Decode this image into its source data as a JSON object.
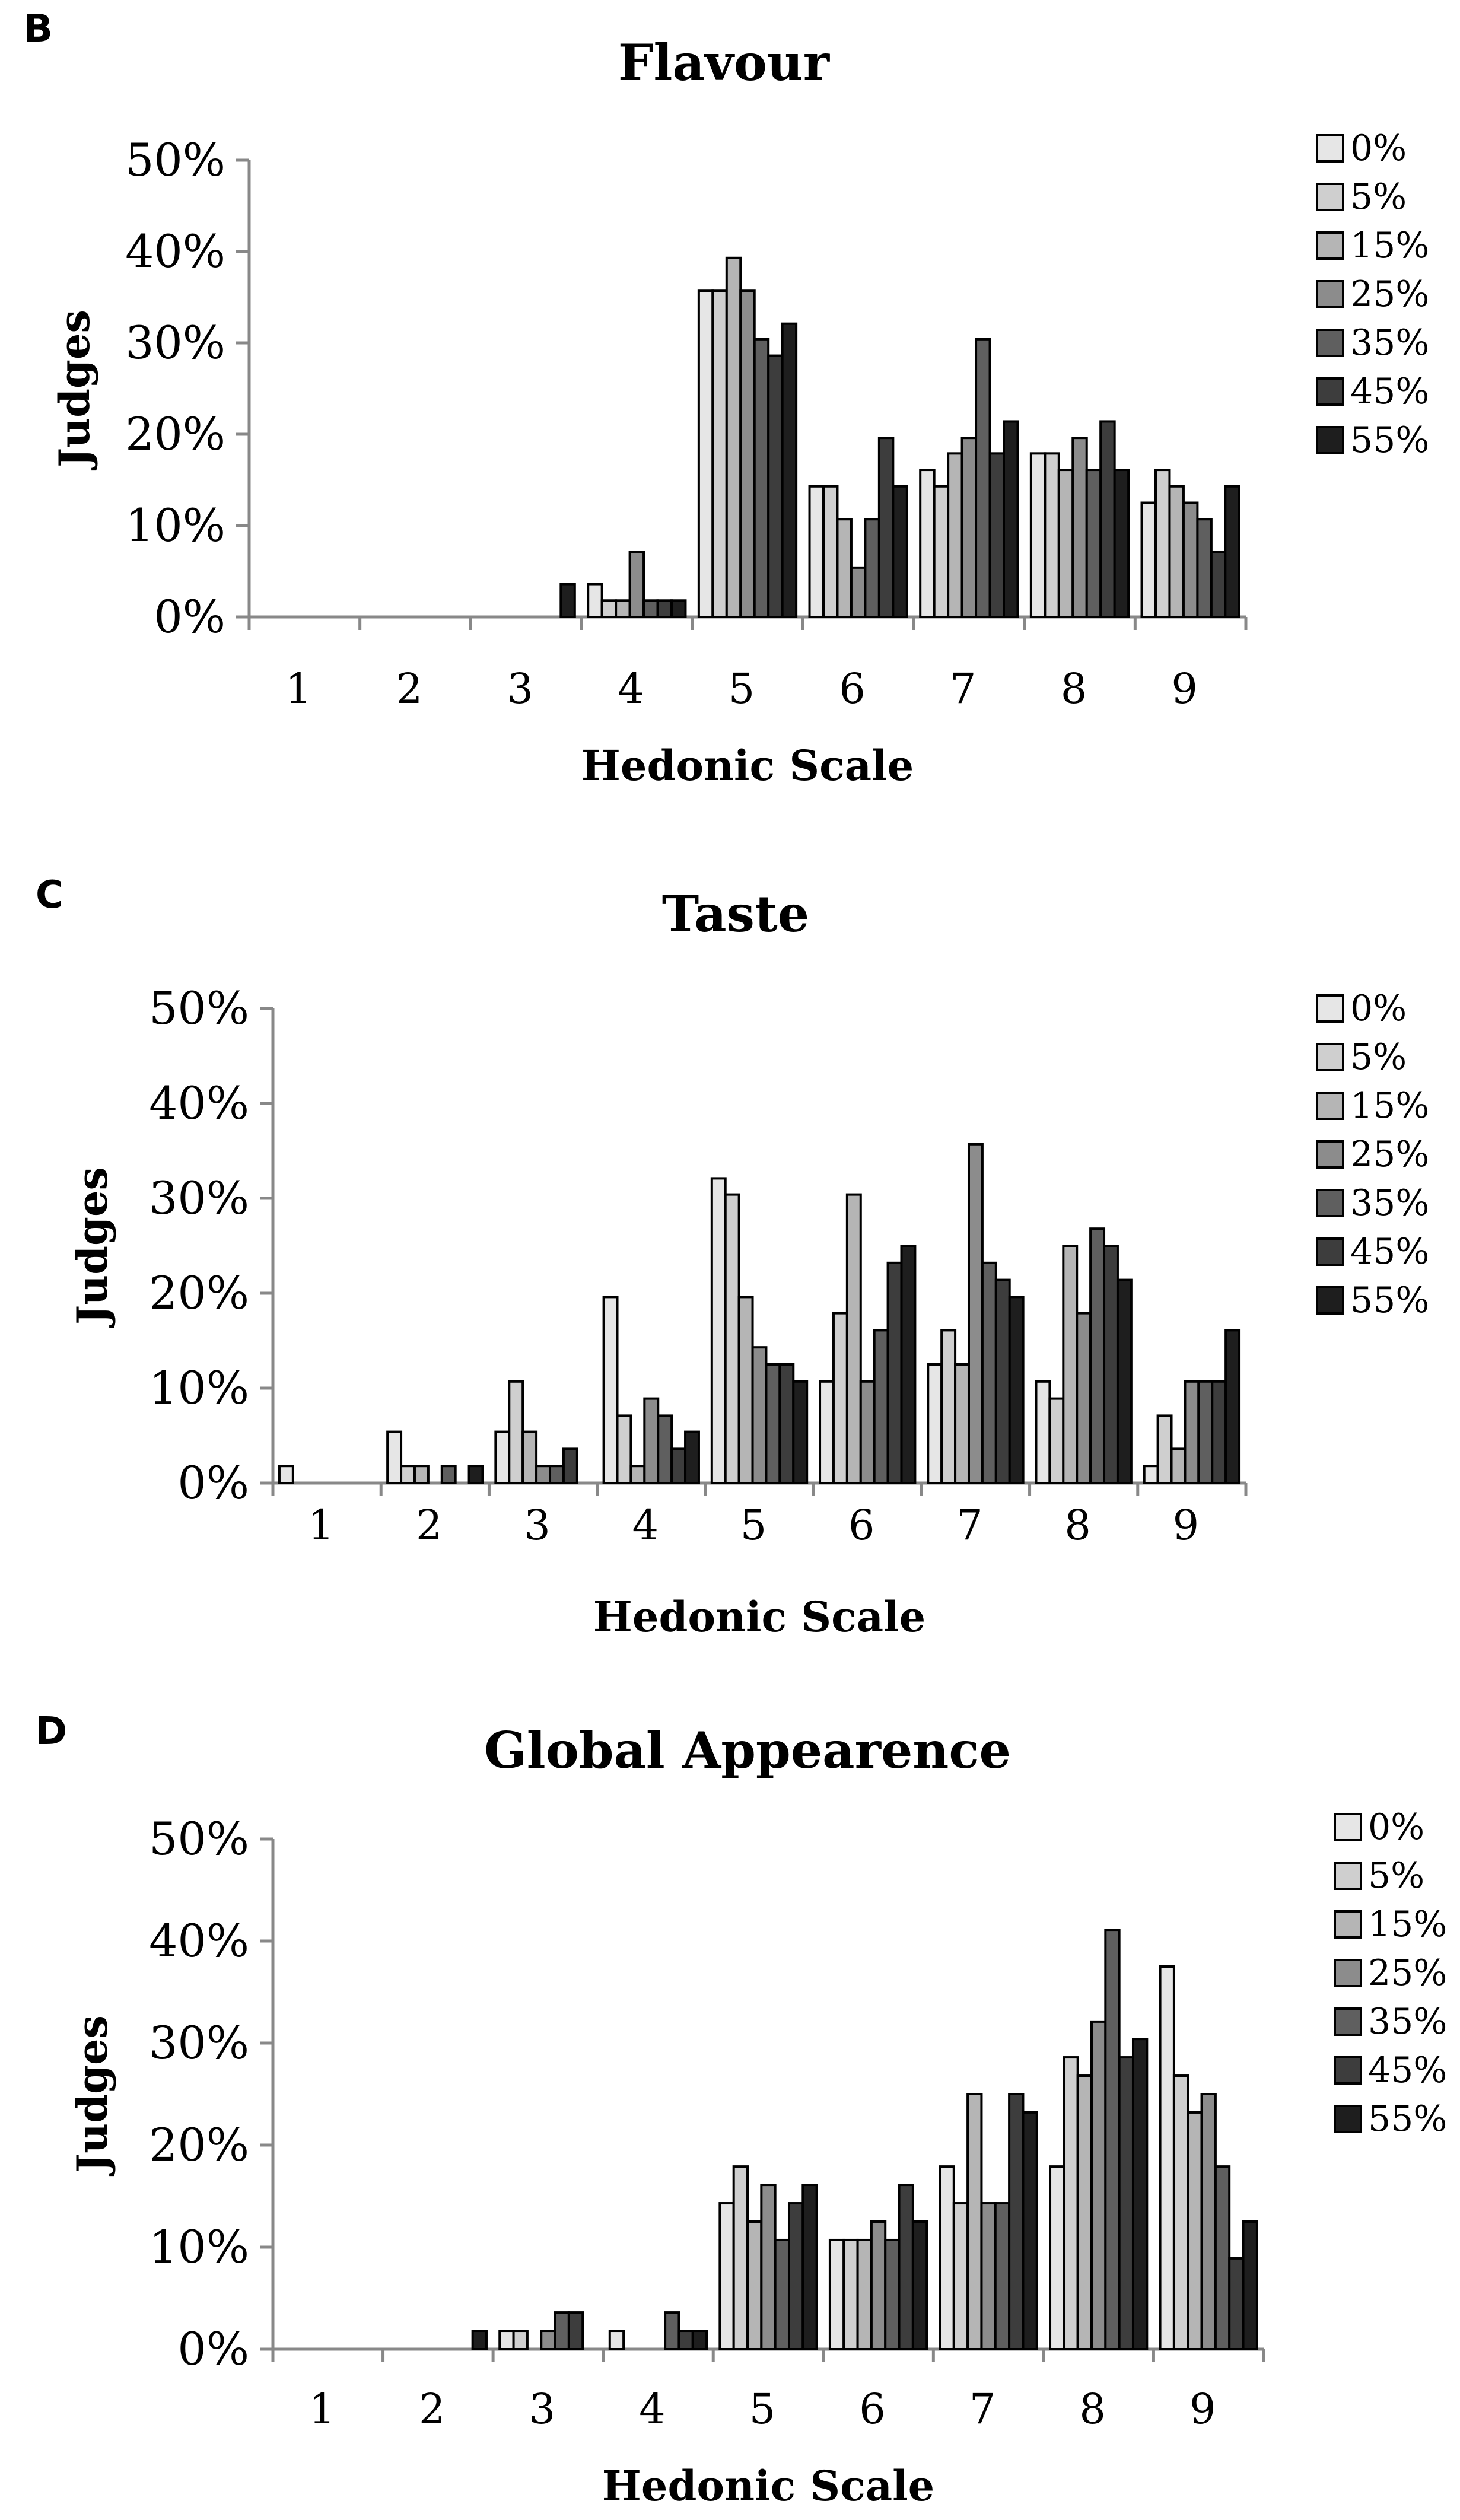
{
  "chart_data": [
    {
      "panel": "B",
      "type": "bar",
      "title": "Flavour",
      "xlabel": "Hedonic Scale",
      "ylabel": "Judges",
      "ylim": [
        0,
        50
      ],
      "yticks": [
        "0%",
        "10%",
        "20%",
        "30%",
        "40%",
        "50%"
      ],
      "categories": [
        "1",
        "2",
        "3",
        "4",
        "5",
        "6",
        "7",
        "8",
        "9"
      ],
      "series": [
        {
          "name": "0%",
          "values": [
            0,
            0,
            0,
            3.6,
            35.7,
            14.3,
            16.1,
            17.9,
            12.5
          ]
        },
        {
          "name": "5%",
          "values": [
            0,
            0,
            0,
            1.8,
            35.7,
            14.3,
            14.3,
            17.9,
            16.1
          ]
        },
        {
          "name": "15%",
          "values": [
            0,
            0,
            0,
            1.8,
            39.3,
            10.7,
            17.9,
            16.1,
            14.3
          ]
        },
        {
          "name": "25%",
          "values": [
            0,
            0,
            0,
            7.1,
            35.7,
            5.4,
            19.6,
            19.6,
            12.5
          ]
        },
        {
          "name": "35%",
          "values": [
            0,
            0,
            0,
            1.8,
            30.4,
            10.7,
            30.4,
            16.1,
            10.7
          ]
        },
        {
          "name": "45%",
          "values": [
            0,
            0,
            0,
            1.8,
            28.6,
            19.6,
            17.9,
            21.4,
            7.1
          ]
        },
        {
          "name": "55%",
          "values": [
            0,
            0,
            3.6,
            1.8,
            32.1,
            14.3,
            21.4,
            16.1,
            14.3
          ]
        }
      ]
    },
    {
      "panel": "C",
      "type": "bar",
      "title": "Taste",
      "xlabel": "Hedonic Scale",
      "ylabel": "Judges",
      "ylim": [
        0,
        50
      ],
      "yticks": [
        "0%",
        "10%",
        "20%",
        "30%",
        "40%",
        "50%"
      ],
      "categories": [
        "1",
        "2",
        "3",
        "4",
        "5",
        "6",
        "7",
        "8",
        "9"
      ],
      "series": [
        {
          "name": "0%",
          "values": [
            1.8,
            5.4,
            5.4,
            19.6,
            32.1,
            10.7,
            12.5,
            10.7,
            1.8
          ]
        },
        {
          "name": "5%",
          "values": [
            0,
            1.8,
            10.7,
            7.1,
            30.4,
            17.9,
            16.1,
            8.9,
            7.1
          ]
        },
        {
          "name": "15%",
          "values": [
            0,
            1.8,
            5.4,
            1.8,
            19.6,
            30.4,
            12.5,
            25.0,
            3.6
          ]
        },
        {
          "name": "25%",
          "values": [
            0,
            0,
            1.8,
            8.9,
            14.3,
            10.7,
            35.7,
            17.9,
            10.7
          ]
        },
        {
          "name": "35%",
          "values": [
            0,
            1.8,
            1.8,
            7.1,
            12.5,
            16.1,
            23.2,
            26.8,
            10.7
          ]
        },
        {
          "name": "45%",
          "values": [
            0,
            0,
            3.6,
            3.6,
            12.5,
            23.2,
            21.4,
            25.0,
            10.7
          ]
        },
        {
          "name": "55%",
          "values": [
            0,
            1.8,
            0,
            5.4,
            10.7,
            25.0,
            19.6,
            21.4,
            16.1
          ]
        }
      ]
    },
    {
      "panel": "D",
      "type": "bar",
      "title": "Global Appearence",
      "xlabel": "Hedonic Scale",
      "ylabel": "Judges",
      "ylim": [
        0,
        50
      ],
      "yticks": [
        "0%",
        "10%",
        "20%",
        "30%",
        "40%",
        "50%"
      ],
      "categories": [
        "1",
        "2",
        "3",
        "4",
        "5",
        "6",
        "7",
        "8",
        "9"
      ],
      "series": [
        {
          "name": "0%",
          "values": [
            0,
            0,
            1.8,
            1.8,
            14.3,
            10.7,
            17.9,
            17.9,
            37.5
          ]
        },
        {
          "name": "5%",
          "values": [
            0,
            0,
            1.8,
            0,
            17.9,
            10.7,
            14.3,
            28.6,
            26.8
          ]
        },
        {
          "name": "15%",
          "values": [
            0,
            0,
            0,
            0,
            12.5,
            10.7,
            25.0,
            26.8,
            23.2
          ]
        },
        {
          "name": "25%",
          "values": [
            0,
            0,
            1.8,
            0,
            16.1,
            12.5,
            14.3,
            32.1,
            25.0
          ]
        },
        {
          "name": "35%",
          "values": [
            0,
            0,
            3.6,
            3.6,
            10.7,
            10.7,
            14.3,
            41.1,
            17.9
          ]
        },
        {
          "name": "45%",
          "values": [
            0,
            0,
            3.6,
            1.8,
            14.3,
            16.1,
            25.0,
            28.6,
            8.9
          ]
        },
        {
          "name": "55%",
          "values": [
            0,
            1.8,
            0,
            1.8,
            16.1,
            12.5,
            23.2,
            30.4,
            12.5
          ]
        }
      ]
    }
  ],
  "colors": [
    "#e6e6e6",
    "#cfcfcf",
    "#b5b5b5",
    "#8c8c8c",
    "#5f5f5f",
    "#3d3d3d",
    "#1e1e1e"
  ]
}
